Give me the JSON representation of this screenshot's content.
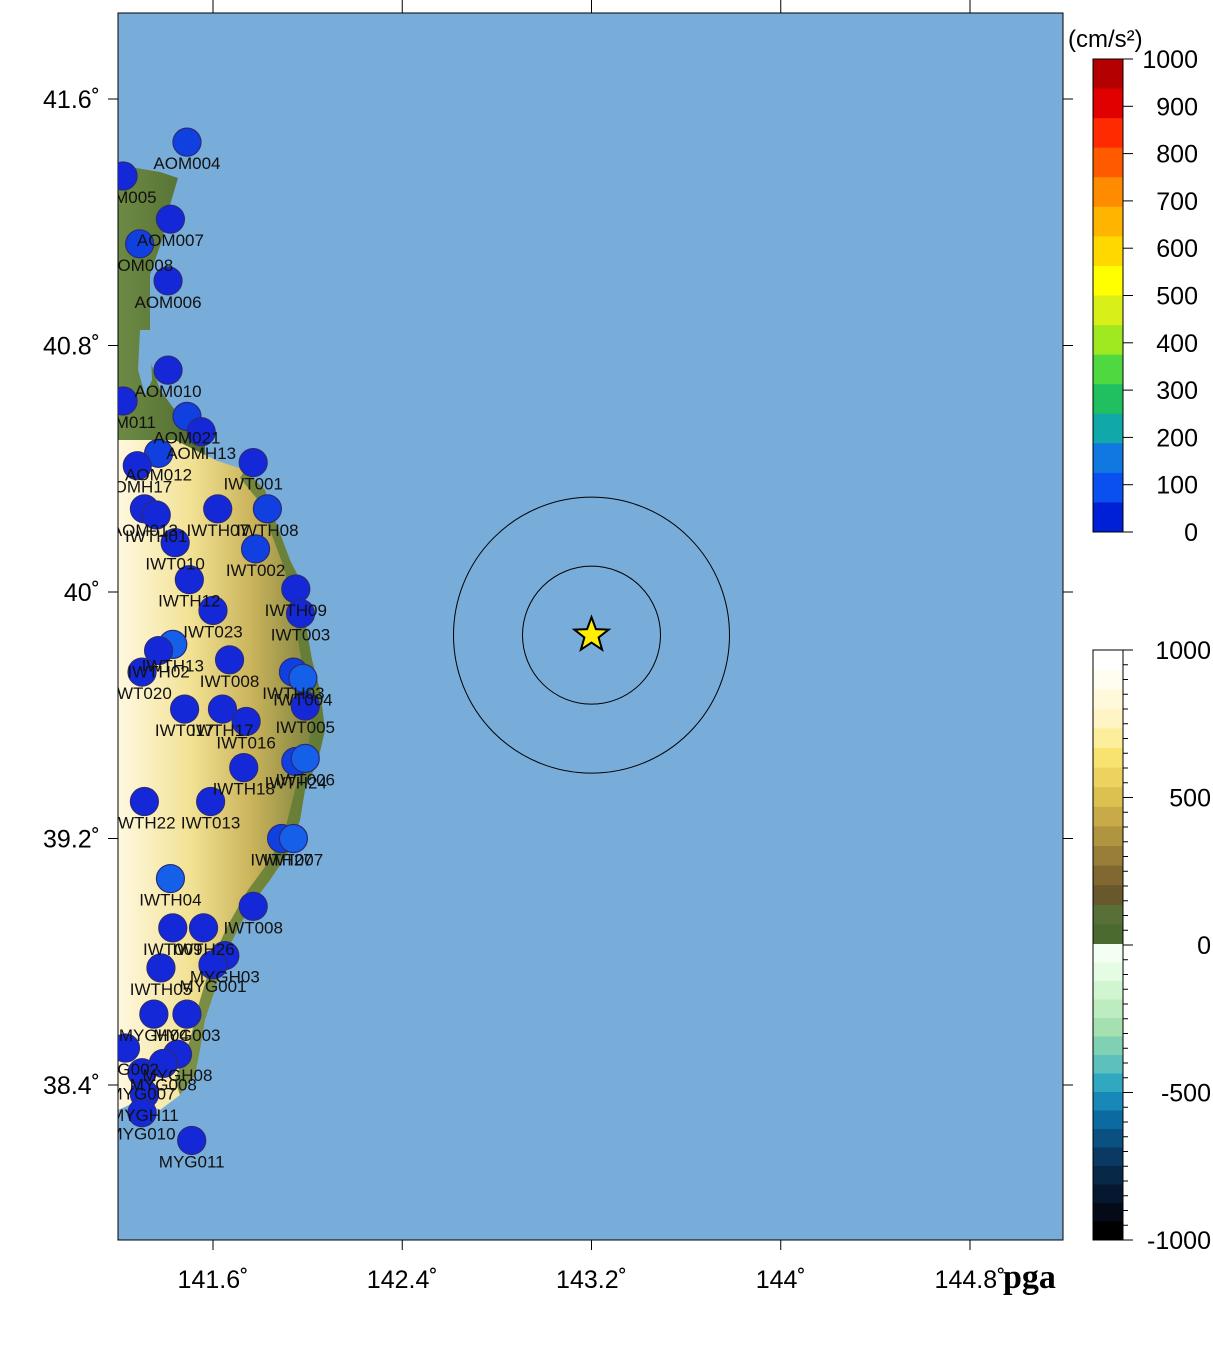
{
  "map": {
    "title": "pga",
    "unit_label": "(cm/s²)",
    "lon_ticks": [
      "141.6˚",
      "142.4˚",
      "143.2˚",
      "144˚",
      "144.8˚"
    ],
    "lat_ticks": [
      "41.6˚",
      "40.8˚",
      "40˚",
      "39.2˚",
      "38.4˚"
    ],
    "epicenter_icon": "star-icon",
    "colors": {
      "ocean": "#78acd9",
      "land_low": "#5a7a3a",
      "land_high": "#fffbe8",
      "station": "#1430e0"
    }
  },
  "pga_colorbar": {
    "labels": [
      "1000",
      "900",
      "800",
      "700",
      "600",
      "500",
      "400",
      "300",
      "200",
      "100",
      "0"
    ],
    "colors": [
      "#b40000",
      "#e00000",
      "#ff2a00",
      "#ff5a00",
      "#ff8c00",
      "#ffb400",
      "#ffd800",
      "#ffff00",
      "#d8f018",
      "#a0e820",
      "#50d840",
      "#20c060",
      "#10a8a8",
      "#1078e0",
      "#0a50f0",
      "#0020d8"
    ]
  },
  "elevation_colorbar": {
    "labels": [
      "1000",
      "500",
      "0",
      "-500",
      "-1000"
    ],
    "colors_top": [
      "#ffffff",
      "#fffdf0",
      "#fff9dc",
      "#fff4c4",
      "#fdee9c",
      "#f8e270",
      "#eed260",
      "#dcc050",
      "#c8aa48",
      "#b09440",
      "#987e38",
      "#806830",
      "#68582c",
      "#587038",
      "#4a6a30"
    ],
    "colors_bottom": [
      "#f4fff4",
      "#e4fbe4",
      "#d0f5d0",
      "#bcecc0",
      "#a4e0b0",
      "#80d0b4",
      "#5cc0bc",
      "#30a8c0",
      "#1888b8",
      "#0c6aa0",
      "#0a5080",
      "#0a3a64",
      "#082848",
      "#061830",
      "#040a18",
      "#000000"
    ]
  },
  "stations": [
    {
      "id": "AOM004",
      "lon": 141.49,
      "lat": 41.46,
      "pga": 60
    },
    {
      "id": "AOM005",
      "lon": 141.22,
      "lat": 41.35,
      "pga": 40
    },
    {
      "id": "AOM007",
      "lon": 141.42,
      "lat": 41.21,
      "pga": 40
    },
    {
      "id": "AOM008",
      "lon": 141.29,
      "lat": 41.13,
      "pga": 50
    },
    {
      "id": "AOM006",
      "lon": 141.41,
      "lat": 41.01,
      "pga": 40
    },
    {
      "id": "AOM010",
      "lon": 141.41,
      "lat": 40.72,
      "pga": 40
    },
    {
      "id": "AOM011",
      "lon": 141.22,
      "lat": 40.62,
      "pga": 40
    },
    {
      "id": "AOM021",
      "lon": 141.49,
      "lat": 40.57,
      "pga": 50
    },
    {
      "id": "AOMH13",
      "lon": 141.55,
      "lat": 40.52,
      "pga": 40
    },
    {
      "id": "AOM012",
      "lon": 141.37,
      "lat": 40.45,
      "pga": 50
    },
    {
      "id": "AOMH17",
      "lon": 141.28,
      "lat": 40.41,
      "pga": 40
    },
    {
      "id": "IWT001",
      "lon": 141.77,
      "lat": 40.42,
      "pga": 40
    },
    {
      "id": "AOM013",
      "lon": 141.31,
      "lat": 40.27,
      "pga": 40
    },
    {
      "id": "IWTH07",
      "lon": 141.62,
      "lat": 40.27,
      "pga": 40
    },
    {
      "id": "IWTH08",
      "lon": 141.83,
      "lat": 40.27,
      "pga": 50
    },
    {
      "id": "IWTH01",
      "lon": 141.36,
      "lat": 40.25,
      "pga": 40
    },
    {
      "id": "IWT002",
      "lon": 141.78,
      "lat": 40.14,
      "pga": 50
    },
    {
      "id": "IWT010",
      "lon": 141.44,
      "lat": 40.16,
      "pga": 40
    },
    {
      "id": "IWTH12",
      "lon": 141.5,
      "lat": 40.04,
      "pga": 40
    },
    {
      "id": "IWTH09",
      "lon": 141.95,
      "lat": 40.01,
      "pga": 40
    },
    {
      "id": "IWT023",
      "lon": 141.6,
      "lat": 39.94,
      "pga": 40
    },
    {
      "id": "IWT003",
      "lon": 141.97,
      "lat": 39.93,
      "pga": 40
    },
    {
      "id": "IWTH13",
      "lon": 141.43,
      "lat": 39.83,
      "pga": 80
    },
    {
      "id": "IWTH02",
      "lon": 141.37,
      "lat": 39.81,
      "pga": 40
    },
    {
      "id": "IWT008",
      "lon": 141.67,
      "lat": 39.78,
      "pga": 40
    },
    {
      "id": "IWT020",
      "lon": 141.3,
      "lat": 39.74,
      "pga": 40
    },
    {
      "id": "IWTH03",
      "lon": 141.94,
      "lat": 39.74,
      "pga": 60
    },
    {
      "id": "IWT004",
      "lon": 141.98,
      "lat": 39.72,
      "pga": 80
    },
    {
      "id": "IWT005",
      "lon": 141.99,
      "lat": 39.63,
      "pga": 40
    },
    {
      "id": "IWT017",
      "lon": 141.48,
      "lat": 39.62,
      "pga": 40
    },
    {
      "id": "IWTH17",
      "lon": 141.64,
      "lat": 39.62,
      "pga": 40
    },
    {
      "id": "IWT016",
      "lon": 141.74,
      "lat": 39.58,
      "pga": 40
    },
    {
      "id": "IWTH18",
      "lon": 141.73,
      "lat": 39.43,
      "pga": 40
    },
    {
      "id": "IWTH24",
      "lon": 141.95,
      "lat": 39.45,
      "pga": 60
    },
    {
      "id": "IWT006",
      "lon": 141.99,
      "lat": 39.46,
      "pga": 80
    },
    {
      "id": "IWTH22",
      "lon": 141.31,
      "lat": 39.32,
      "pga": 40
    },
    {
      "id": "IWT013",
      "lon": 141.59,
      "lat": 39.32,
      "pga": 40
    },
    {
      "id": "IWTH27",
      "lon": 141.89,
      "lat": 39.2,
      "pga": 50
    },
    {
      "id": "IWT007",
      "lon": 141.94,
      "lat": 39.2,
      "pga": 70
    },
    {
      "id": "IWTH04",
      "lon": 141.42,
      "lat": 39.07,
      "pga": 80
    },
    {
      "id": "IWT008",
      "lon": 141.77,
      "lat": 38.98,
      "pga": 40
    },
    {
      "id": "IWT009",
      "lon": 141.43,
      "lat": 38.91,
      "pga": 40
    },
    {
      "id": "IWTH26",
      "lon": 141.56,
      "lat": 38.91,
      "pga": 40
    },
    {
      "id": "MYGH03",
      "lon": 141.65,
      "lat": 38.82,
      "pga": 40
    },
    {
      "id": "MYG001",
      "lon": 141.6,
      "lat": 38.79,
      "pga": 40
    },
    {
      "id": "IWTH05",
      "lon": 141.38,
      "lat": 38.78,
      "pga": 40
    },
    {
      "id": "MYGH04",
      "lon": 141.35,
      "lat": 38.63,
      "pga": 40
    },
    {
      "id": "MYG003",
      "lon": 141.49,
      "lat": 38.63,
      "pga": 40
    },
    {
      "id": "MYG002",
      "lon": 141.23,
      "lat": 38.52,
      "pga": 40
    },
    {
      "id": "MYGH08",
      "lon": 141.45,
      "lat": 38.5,
      "pga": 40
    },
    {
      "id": "MYG007",
      "lon": 141.3,
      "lat": 38.44,
      "pga": 40
    },
    {
      "id": "MYG008",
      "lon": 141.39,
      "lat": 38.47,
      "pga": 40
    },
    {
      "id": "MYGH11",
      "lon": 141.31,
      "lat": 38.37,
      "pga": 40
    },
    {
      "id": "MYG010",
      "lon": 141.3,
      "lat": 38.31,
      "pga": 40
    },
    {
      "id": "MYG011",
      "lon": 141.51,
      "lat": 38.22,
      "pga": 40
    }
  ],
  "epicenter": {
    "lon": 143.2,
    "lat": 39.86
  }
}
